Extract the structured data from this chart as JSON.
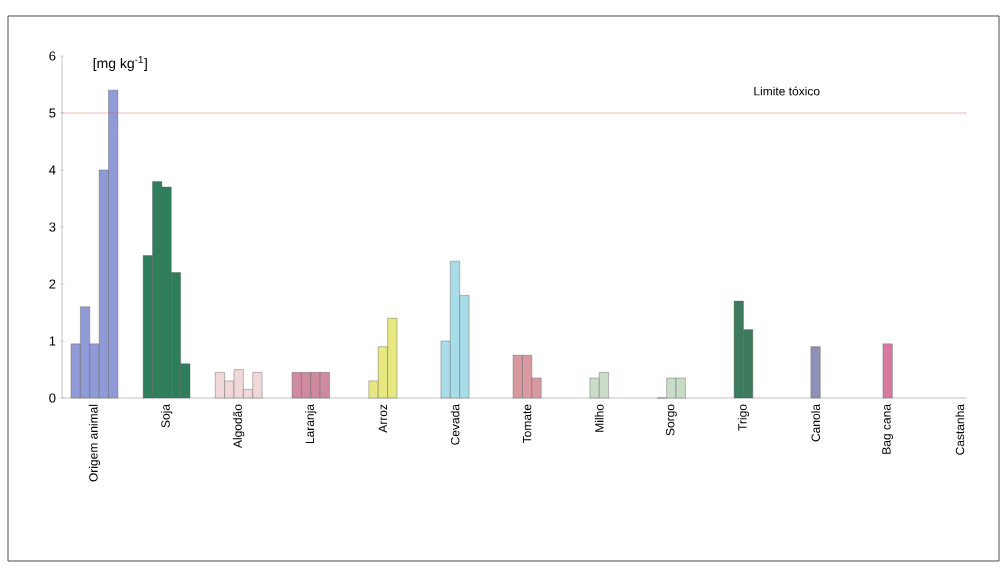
{
  "chart_data": {
    "type": "bar",
    "ylabel": "[mg kg$^{-1}$]",
    "categories": [
      "Origem animal",
      "Soja",
      "Algodão",
      "Laranja",
      "Arroz",
      "Cevada",
      "Tomate",
      "Milho",
      "Sorgo",
      "Trigo",
      "Canola",
      "Bag cana",
      "Castanha"
    ],
    "series": [
      {
        "colors": [
          "#8f9ad6",
          "#2e7d5b",
          "#f0d8d8",
          "#d08aa0",
          "#e8e880",
          "#a8dce8",
          "#d89aa0",
          "#c8dcc8",
          "#c8dcc8",
          "#3d7a5e",
          "#9090b8",
          "#d87aa0",
          "#cccccc"
        ],
        "values": [
          0.95,
          2.5,
          0.45,
          0.45,
          0.3,
          1.0,
          0.75,
          0.35,
          0.0,
          1.7,
          0.9,
          0.95,
          null
        ]
      },
      {
        "colors": [
          "#8f9ad6",
          "#2e7d5b",
          "#f0d8d8",
          "#d08aa0",
          "#e8e880",
          "#a8dce8",
          "#d89aa0",
          "#c8dcc8",
          "#c8dcc8",
          "#3d7a5e",
          "#9090b8",
          "#d87aa0",
          "#cccccc"
        ],
        "values": [
          1.6,
          3.8,
          0.3,
          0.45,
          0.9,
          2.4,
          0.75,
          0.45,
          0.35,
          1.2,
          null,
          null,
          null
        ]
      },
      {
        "colors": [
          "#8f9ad6",
          "#2e7d5b",
          "#f0d8d8",
          "#d08aa0",
          "#e8e880",
          "#a8dce8",
          "#d89aa0",
          "#c8dcc8",
          "#c8dcc8",
          "#3d7a5e",
          "#9090b8",
          "#d87aa0",
          "#cccccc"
        ],
        "values": [
          0.95,
          3.7,
          0.5,
          0.45,
          1.4,
          1.8,
          0.35,
          null,
          0.35,
          null,
          null,
          null,
          null
        ]
      },
      {
        "colors": [
          "#8f9ad6",
          "#2e7d5b",
          "#f0d8d8",
          "#d08aa0",
          "#e8e880",
          "#a8dce8",
          "#d89aa0",
          "#c8dcc8",
          "#c8dcc8",
          "#3d7a5e",
          "#9090b8",
          "#d87aa0",
          "#cccccc"
        ],
        "values": [
          4.0,
          2.2,
          0.15,
          0.45,
          null,
          null,
          null,
          null,
          null,
          null,
          null,
          null,
          null
        ]
      },
      {
        "colors": [
          "#8f9ad6",
          "#2e7d5b",
          "#f0d8d8",
          "#d08aa0",
          "#e8e880",
          "#a8dce8",
          "#d89aa0",
          "#c8dcc8",
          "#c8dcc8",
          "#3d7a5e",
          "#9090b8",
          "#d87aa0",
          "#cccccc"
        ],
        "values": [
          5.4,
          0.6,
          0.45,
          null,
          null,
          null,
          null,
          null,
          null,
          null,
          null,
          null,
          null
        ]
      }
    ],
    "ylim": [
      0,
      6
    ],
    "yticks": [
      0,
      1,
      2,
      3,
      4,
      5,
      6
    ],
    "grid": false,
    "ref_lines": [
      {
        "axis": "y",
        "value": 5,
        "label": "Limite tóxico",
        "color": "#d05a5a"
      }
    ]
  }
}
